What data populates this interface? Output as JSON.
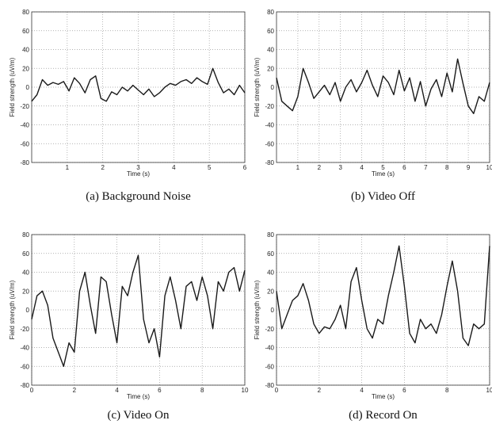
{
  "chart_data": [
    {
      "type": "line",
      "caption": "(a)  Background Noise",
      "xlabel": "Time (s)",
      "ylabel": "Field strength (uV/m)",
      "xlim": [
        0,
        6
      ],
      "ylim": [
        -80,
        80
      ],
      "xticks": [
        1,
        2,
        3,
        4,
        5,
        6
      ],
      "yticks": [
        80,
        60,
        40,
        20,
        0,
        -20,
        -40,
        -60,
        -80
      ],
      "grid": true,
      "series": [
        {
          "x": [
            0.0,
            0.15,
            0.3,
            0.45,
            0.6,
            0.75,
            0.9,
            1.05,
            1.2,
            1.35,
            1.5,
            1.65,
            1.8,
            1.95,
            2.1,
            2.25,
            2.4,
            2.55,
            2.7,
            2.85,
            3.0,
            3.15,
            3.3,
            3.45,
            3.6,
            3.75,
            3.9,
            4.05,
            4.2,
            4.35,
            4.5,
            4.65,
            4.8,
            4.95,
            5.1,
            5.25,
            5.4,
            5.55,
            5.7,
            5.85,
            6.0
          ],
          "y": [
            -15,
            -8,
            8,
            2,
            5,
            3,
            6,
            -4,
            10,
            4,
            -6,
            8,
            12,
            -12,
            -15,
            -5,
            -8,
            0,
            -4,
            2,
            -3,
            -8,
            -2,
            -10,
            -6,
            0,
            4,
            2,
            6,
            8,
            4,
            10,
            6,
            3,
            20,
            5,
            -6,
            -2,
            -8,
            2,
            -6
          ]
        }
      ]
    },
    {
      "type": "line",
      "caption": "(b)  Video Off",
      "xlabel": "Time (s)",
      "ylabel": "Field strength (uV/m)",
      "xlim": [
        0,
        10
      ],
      "ylim": [
        -80,
        80
      ],
      "xticks": [
        1,
        2,
        3,
        4,
        5,
        6,
        7,
        8,
        9,
        10
      ],
      "yticks": [
        80,
        60,
        40,
        20,
        0,
        -20,
        -40,
        -60,
        -80
      ],
      "grid": true,
      "series": [
        {
          "x": [
            0.0,
            0.25,
            0.5,
            0.75,
            1.0,
            1.25,
            1.5,
            1.75,
            2.0,
            2.25,
            2.5,
            2.75,
            3.0,
            3.25,
            3.5,
            3.75,
            4.0,
            4.25,
            4.5,
            4.75,
            5.0,
            5.25,
            5.5,
            5.75,
            6.0,
            6.25,
            6.5,
            6.75,
            7.0,
            7.25,
            7.5,
            7.75,
            8.0,
            8.25,
            8.5,
            8.75,
            9.0,
            9.25,
            9.5,
            9.75,
            10.0
          ],
          "y": [
            10,
            -15,
            -20,
            -25,
            -10,
            20,
            5,
            -12,
            -5,
            2,
            -8,
            5,
            -15,
            0,
            8,
            -5,
            5,
            18,
            2,
            -10,
            12,
            5,
            -8,
            18,
            -4,
            10,
            -15,
            6,
            -20,
            -2,
            8,
            -10,
            15,
            -5,
            30,
            4,
            -20,
            -28,
            -10,
            -15,
            5
          ]
        }
      ]
    },
    {
      "type": "line",
      "caption": "(c)  Video On",
      "xlabel": "Time (s)",
      "ylabel": "Field strength (uV/m)",
      "xlim": [
        0,
        10
      ],
      "ylim": [
        -80,
        80
      ],
      "xticks": [
        0,
        2,
        4,
        6,
        8,
        10
      ],
      "yticks": [
        80,
        60,
        40,
        20,
        0,
        -20,
        -40,
        -60,
        -80
      ],
      "grid": true,
      "series": [
        {
          "x": [
            0.0,
            0.25,
            0.5,
            0.75,
            1.0,
            1.25,
            1.5,
            1.75,
            2.0,
            2.25,
            2.5,
            2.75,
            3.0,
            3.25,
            3.5,
            3.75,
            4.0,
            4.25,
            4.5,
            4.75,
            5.0,
            5.25,
            5.5,
            5.75,
            6.0,
            6.25,
            6.5,
            6.75,
            7.0,
            7.25,
            7.5,
            7.75,
            8.0,
            8.25,
            8.5,
            8.75,
            9.0,
            9.25,
            9.5,
            9.75,
            10.0
          ],
          "y": [
            -10,
            15,
            20,
            5,
            -30,
            -45,
            -60,
            -35,
            -45,
            20,
            40,
            5,
            -25,
            35,
            30,
            -5,
            -35,
            25,
            15,
            40,
            58,
            -10,
            -35,
            -20,
            -50,
            15,
            35,
            10,
            -20,
            25,
            30,
            10,
            35,
            15,
            -20,
            30,
            20,
            40,
            45,
            20,
            42
          ]
        }
      ]
    },
    {
      "type": "line",
      "caption": "(d)  Record On",
      "xlabel": "Time (s)",
      "ylabel": "Field strength (uV/m)",
      "xlim": [
        0,
        10
      ],
      "ylim": [
        -80,
        80
      ],
      "xticks": [
        0,
        2,
        4,
        6,
        8,
        10
      ],
      "yticks": [
        80,
        60,
        40,
        20,
        0,
        -20,
        -40,
        -60,
        -80
      ],
      "grid": true,
      "series": [
        {
          "x": [
            0.0,
            0.25,
            0.5,
            0.75,
            1.0,
            1.25,
            1.5,
            1.75,
            2.0,
            2.25,
            2.5,
            2.75,
            3.0,
            3.25,
            3.5,
            3.75,
            4.0,
            4.25,
            4.5,
            4.75,
            5.0,
            5.25,
            5.5,
            5.75,
            6.0,
            6.25,
            6.5,
            6.75,
            7.0,
            7.25,
            7.5,
            7.75,
            8.0,
            8.25,
            8.5,
            8.75,
            9.0,
            9.25,
            9.5,
            9.75,
            10.0
          ],
          "y": [
            20,
            -20,
            -5,
            10,
            15,
            28,
            10,
            -15,
            -25,
            -18,
            -20,
            -10,
            5,
            -20,
            30,
            45,
            10,
            -20,
            -30,
            -10,
            -15,
            15,
            40,
            68,
            25,
            -25,
            -35,
            -10,
            -20,
            -15,
            -25,
            -5,
            25,
            52,
            20,
            -30,
            -38,
            -15,
            -20,
            -15,
            68
          ]
        }
      ]
    }
  ]
}
